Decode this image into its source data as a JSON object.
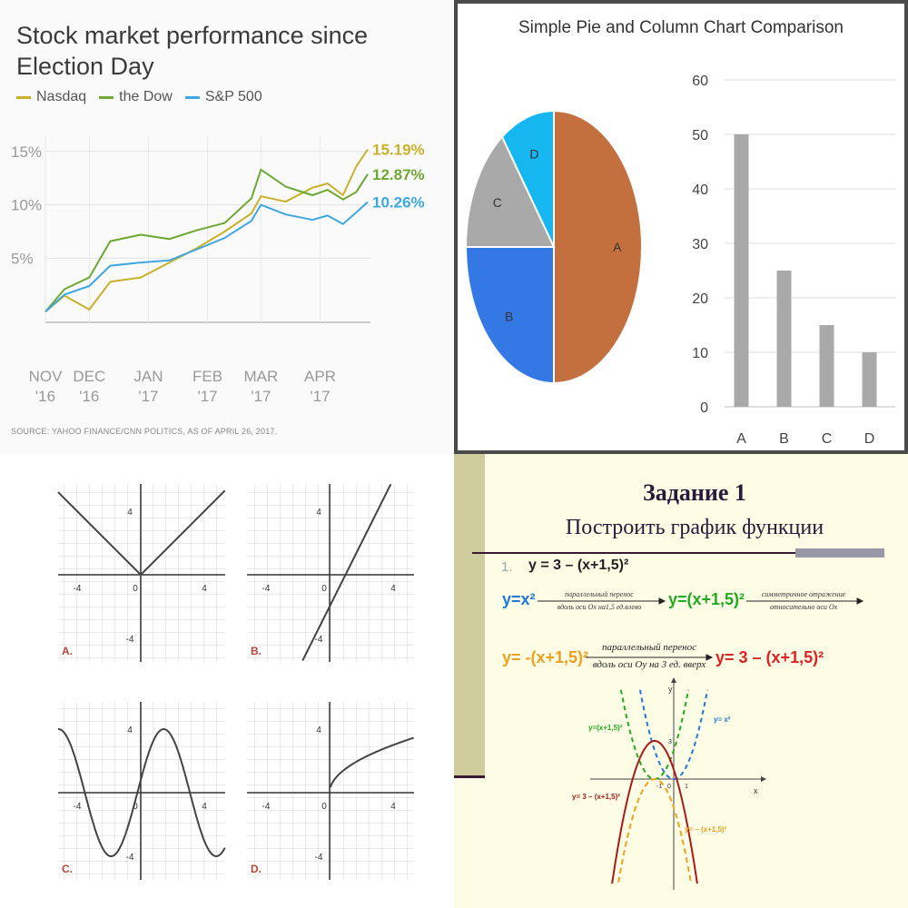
{
  "stock_chart": {
    "title": "Stock market performance since Election Day",
    "legend": [
      {
        "name": "Nasdaq",
        "color": "#c8b02a"
      },
      {
        "name": "the Dow",
        "color": "#6ea832"
      },
      {
        "name": "S&P 500",
        "color": "#3fa7e0"
      }
    ],
    "end_labels": [
      "15.19%",
      "12.87%",
      "10.26%"
    ],
    "source": "SOURCE: YAHOO FINANCE/CNN POLITICS, AS OF APRIL 26, 2017."
  },
  "pie_panel": {
    "title": "Simple Pie and Column Chart Comparison"
  },
  "function_panel": {
    "labels": [
      "A.",
      "B.",
      "C.",
      "D."
    ],
    "tick_labels": [
      "-4",
      "0",
      "4"
    ]
  },
  "task_panel": {
    "title": "Задание 1",
    "subtitle": "Построить график функции",
    "step_number": "1.",
    "step_equation": "y = 3 – (x+1,5)²",
    "eq1": "y=x²",
    "note1_top": "параллельный перенос",
    "note1_bottom": "вдоль оси Ох на1,5 ед.влево",
    "eq2": "y=(x+1,5)²",
    "note2_top": "симметричное отражение",
    "note2_bottom": "относительно оси Ох",
    "eq3": "y= -(x+1,5)²",
    "note3_top": "параллельный перенос",
    "note3_bottom": "вдоль оси Оу на 3 ед. вверх",
    "eq4": "y= 3 – (x+1,5)²",
    "graph_labels": {
      "y_axis": "y",
      "x_axis": "x",
      "blue": "y= x²",
      "green": "y=(x+1,5)²",
      "red": "y= 3 – (x+1,5)²",
      "orange": "y= – (x+1,5)²",
      "tick_3": "3",
      "tick_1": "1",
      "tick_0": "0",
      "tick_m1": "-1"
    }
  },
  "chart_data": [
    {
      "type": "line",
      "title": "Stock market performance since Election Day",
      "x_tick_labels": [
        [
          "NOV",
          "'16"
        ],
        [
          "DEC",
          "'16"
        ],
        [
          "JAN",
          "'17"
        ],
        [
          "FEB",
          "'17"
        ],
        [
          "MAR",
          "'17"
        ],
        [
          "APR",
          "'17"
        ]
      ],
      "y_tick_labels": [
        "5%",
        "10%",
        "15%"
      ],
      "ylim": [
        -1,
        16
      ],
      "x_range": [
        "2016-11-08",
        "2017-04-26"
      ],
      "series": [
        {
          "name": "Nasdaq",
          "color": "#c8b02a",
          "dates": [
            "2016-11-08",
            "2016-11-18",
            "2016-12-01",
            "2016-12-12",
            "2016-12-28",
            "2017-01-12",
            "2017-01-26",
            "2017-02-10",
            "2017-02-24",
            "2017-03-01",
            "2017-03-14",
            "2017-03-28",
            "2017-04-05",
            "2017-04-13",
            "2017-04-20",
            "2017-04-26"
          ],
          "values": [
            0,
            1.5,
            0.2,
            2.8,
            3.2,
            4.6,
            5.9,
            7.5,
            9.2,
            10.8,
            10.3,
            11.6,
            12.0,
            10.9,
            13.6,
            15.19
          ]
        },
        {
          "name": "the Dow",
          "color": "#6ea832",
          "dates": [
            "2016-11-08",
            "2016-11-18",
            "2016-12-01",
            "2016-12-12",
            "2016-12-28",
            "2017-01-12",
            "2017-01-26",
            "2017-02-10",
            "2017-02-24",
            "2017-03-01",
            "2017-03-14",
            "2017-03-28",
            "2017-04-05",
            "2017-04-13",
            "2017-04-20",
            "2017-04-26"
          ],
          "values": [
            0,
            2.1,
            3.2,
            6.6,
            7.2,
            6.8,
            7.6,
            8.3,
            10.6,
            13.3,
            11.7,
            10.9,
            11.4,
            10.5,
            11.2,
            12.87
          ]
        },
        {
          "name": "S&P 500",
          "color": "#3fa7e0",
          "dates": [
            "2016-11-08",
            "2016-11-18",
            "2016-12-01",
            "2016-12-12",
            "2016-12-28",
            "2017-01-12",
            "2017-01-26",
            "2017-02-10",
            "2017-02-24",
            "2017-03-01",
            "2017-03-14",
            "2017-03-28",
            "2017-04-05",
            "2017-04-13",
            "2017-04-20",
            "2017-04-26"
          ],
          "values": [
            0,
            1.6,
            2.4,
            4.3,
            4.6,
            4.8,
            5.8,
            6.9,
            8.5,
            10.0,
            9.1,
            8.6,
            9.0,
            8.2,
            9.3,
            10.26
          ]
        }
      ]
    },
    {
      "type": "pie",
      "categories": [
        "A",
        "B",
        "C",
        "D"
      ],
      "values": [
        50,
        25,
        15,
        10
      ],
      "colors": [
        "#c4703e",
        "#3478e6",
        "#a9a9a9",
        "#16b7f0"
      ]
    },
    {
      "type": "bar",
      "categories": [
        "A",
        "B",
        "C",
        "D"
      ],
      "values": [
        50,
        25,
        15,
        10
      ],
      "ylim": [
        0,
        60
      ],
      "y_ticks": [
        0,
        10,
        20,
        30,
        40,
        50,
        60
      ],
      "color": "#a9a9a9",
      "grid": true
    }
  ]
}
